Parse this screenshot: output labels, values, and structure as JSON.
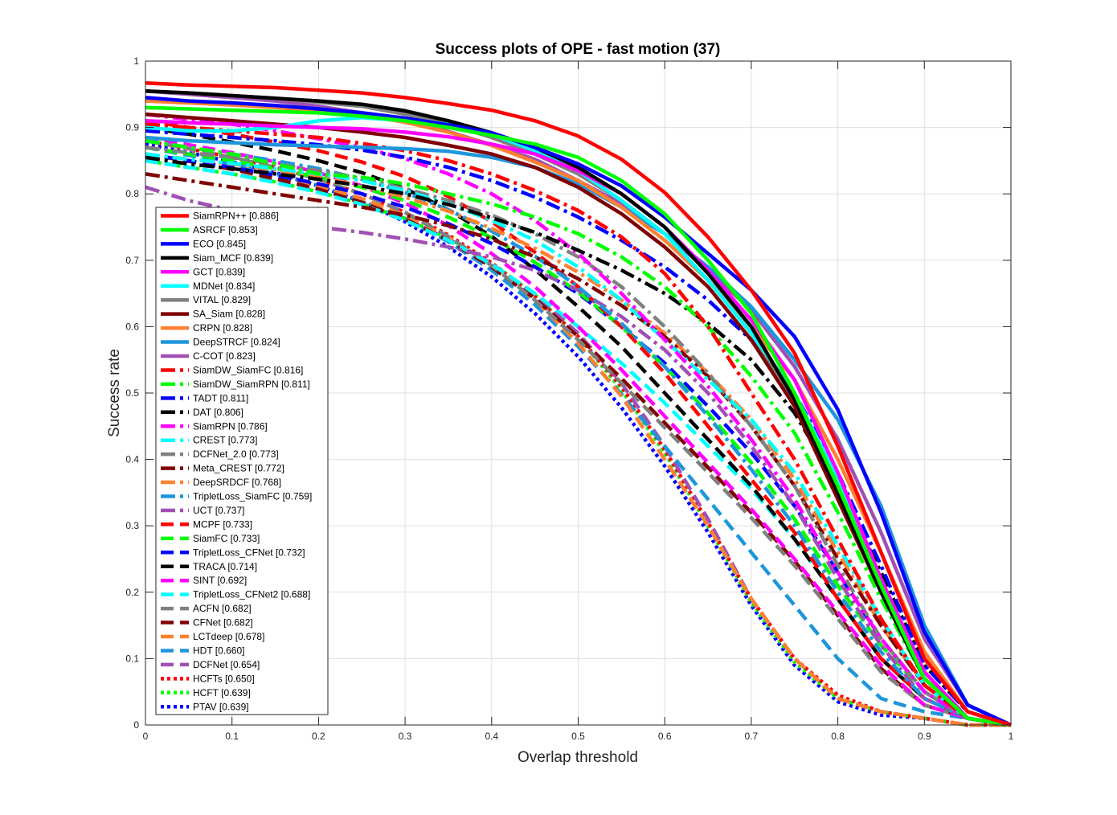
{
  "chart_data": {
    "type": "line",
    "title": "Success plots of OPE - fast motion (37)",
    "xlabel": "Overlap threshold",
    "ylabel": "Success rate",
    "xlim": [
      0,
      1
    ],
    "ylim": [
      0,
      1
    ],
    "xticks": [
      "0",
      "0.1",
      "0.2",
      "0.3",
      "0.4",
      "0.5",
      "0.6",
      "0.7",
      "0.8",
      "0.9",
      "1"
    ],
    "yticks": [
      "0",
      "0.1",
      "0.2",
      "0.3",
      "0.4",
      "0.5",
      "0.6",
      "0.7",
      "0.8",
      "0.9",
      "1"
    ],
    "grid": true,
    "legend_position": "bottom-left",
    "x": [
      0,
      0.05,
      0.1,
      0.15,
      0.2,
      0.25,
      0.3,
      0.35,
      0.4,
      0.45,
      0.5,
      0.55,
      0.6,
      0.65,
      0.7,
      0.75,
      0.8,
      0.85,
      0.9,
      0.95,
      1
    ],
    "series": [
      {
        "name": "SiamRPN++ [0.886]",
        "color": "#ff0000",
        "style": "solid",
        "values": [
          0.967,
          0.964,
          0.962,
          0.96,
          0.956,
          0.952,
          0.945,
          0.936,
          0.926,
          0.91,
          0.887,
          0.852,
          0.802,
          0.735,
          0.655,
          0.56,
          0.42,
          0.26,
          0.1,
          0.02,
          0.0
        ]
      },
      {
        "name": "ASRCF [0.853]",
        "color": "#00ff00",
        "style": "solid",
        "values": [
          0.93,
          0.928,
          0.926,
          0.924,
          0.922,
          0.917,
          0.91,
          0.9,
          0.888,
          0.875,
          0.855,
          0.82,
          0.77,
          0.7,
          0.62,
          0.5,
          0.36,
          0.21,
          0.07,
          0.01,
          0.0
        ]
      },
      {
        "name": "ECO [0.845]",
        "color": "#0000ff",
        "style": "solid",
        "values": [
          0.945,
          0.94,
          0.937,
          0.933,
          0.928,
          0.922,
          0.914,
          0.904,
          0.892,
          0.87,
          0.845,
          0.812,
          0.765,
          0.71,
          0.655,
          0.585,
          0.475,
          0.32,
          0.14,
          0.03,
          0.0
        ]
      },
      {
        "name": "Siam_MCF [0.839]",
        "color": "#000000",
        "style": "solid",
        "values": [
          0.955,
          0.952,
          0.948,
          0.944,
          0.94,
          0.935,
          0.925,
          0.91,
          0.892,
          0.87,
          0.84,
          0.8,
          0.75,
          0.68,
          0.6,
          0.49,
          0.35,
          0.2,
          0.07,
          0.01,
          0.0
        ]
      },
      {
        "name": "GCT [0.839]",
        "color": "#ff00ff",
        "style": "solid",
        "values": [
          0.91,
          0.907,
          0.905,
          0.902,
          0.9,
          0.898,
          0.893,
          0.886,
          0.875,
          0.86,
          0.835,
          0.8,
          0.75,
          0.685,
          0.61,
          0.52,
          0.38,
          0.22,
          0.08,
          0.01,
          0.0
        ]
      },
      {
        "name": "MDNet [0.834]",
        "color": "#00ffff",
        "style": "solid",
        "values": [
          0.9,
          0.895,
          0.895,
          0.9,
          0.91,
          0.915,
          0.91,
          0.905,
          0.89,
          0.865,
          0.835,
          0.79,
          0.74,
          0.67,
          0.59,
          0.5,
          0.37,
          0.22,
          0.08,
          0.01,
          0.0
        ]
      },
      {
        "name": "VITAL [0.829]",
        "color": "#808080",
        "style": "solid",
        "values": [
          0.955,
          0.952,
          0.948,
          0.944,
          0.938,
          0.932,
          0.92,
          0.905,
          0.885,
          0.86,
          0.83,
          0.79,
          0.74,
          0.67,
          0.59,
          0.49,
          0.35,
          0.2,
          0.07,
          0.01,
          0.0
        ]
      },
      {
        "name": "SA_Siam [0.828]",
        "color": "#800000",
        "style": "solid",
        "values": [
          0.92,
          0.915,
          0.91,
          0.905,
          0.9,
          0.893,
          0.885,
          0.873,
          0.86,
          0.84,
          0.81,
          0.77,
          0.72,
          0.66,
          0.58,
          0.48,
          0.34,
          0.2,
          0.07,
          0.01,
          0.0
        ]
      },
      {
        "name": "CRPN [0.828]",
        "color": "#ff8030",
        "style": "solid",
        "values": [
          0.94,
          0.937,
          0.934,
          0.93,
          0.925,
          0.918,
          0.908,
          0.893,
          0.873,
          0.848,
          0.82,
          0.78,
          0.73,
          0.67,
          0.6,
          0.52,
          0.4,
          0.26,
          0.11,
          0.02,
          0.0
        ]
      },
      {
        "name": "DeepSTRCF [0.824]",
        "color": "#1e96dc",
        "style": "solid",
        "values": [
          0.885,
          0.88,
          0.877,
          0.874,
          0.872,
          0.87,
          0.868,
          0.864,
          0.855,
          0.84,
          0.815,
          0.78,
          0.74,
          0.69,
          0.63,
          0.55,
          0.46,
          0.33,
          0.15,
          0.03,
          0.0
        ]
      },
      {
        "name": "C-COT [0.823]",
        "color": "#a050b4",
        "style": "solid",
        "values": [
          0.955,
          0.95,
          0.945,
          0.94,
          0.932,
          0.922,
          0.91,
          0.894,
          0.874,
          0.852,
          0.82,
          0.785,
          0.74,
          0.685,
          0.625,
          0.54,
          0.43,
          0.29,
          0.13,
          0.03,
          0.0
        ]
      },
      {
        "name": "SiamDW_SiamFC [0.816]",
        "color": "#ff0000",
        "style": "dashdot",
        "values": [
          0.905,
          0.9,
          0.895,
          0.89,
          0.885,
          0.876,
          0.865,
          0.85,
          0.83,
          0.805,
          0.775,
          0.735,
          0.68,
          0.6,
          0.5,
          0.4,
          0.28,
          0.16,
          0.06,
          0.01,
          0.0
        ]
      },
      {
        "name": "SiamDW_SiamRPN [0.811]",
        "color": "#00ff00",
        "style": "dashdot",
        "values": [
          0.88,
          0.87,
          0.86,
          0.845,
          0.83,
          0.825,
          0.815,
          0.8,
          0.785,
          0.765,
          0.74,
          0.705,
          0.66,
          0.6,
          0.525,
          0.44,
          0.32,
          0.19,
          0.07,
          0.01,
          0.0
        ]
      },
      {
        "name": "TADT [0.811]",
        "color": "#0000ff",
        "style": "dashdot",
        "values": [
          0.895,
          0.89,
          0.885,
          0.88,
          0.874,
          0.866,
          0.855,
          0.84,
          0.82,
          0.795,
          0.765,
          0.73,
          0.69,
          0.64,
          0.58,
          0.5,
          0.38,
          0.24,
          0.09,
          0.02,
          0.0
        ]
      },
      {
        "name": "DAT [0.806]",
        "color": "#000000",
        "style": "dashdot",
        "values": [
          0.855,
          0.845,
          0.838,
          0.83,
          0.822,
          0.812,
          0.8,
          0.784,
          0.764,
          0.742,
          0.715,
          0.685,
          0.65,
          0.605,
          0.55,
          0.47,
          0.36,
          0.23,
          0.09,
          0.02,
          0.0
        ]
      },
      {
        "name": "SiamRPN [0.786]",
        "color": "#ff00ff",
        "style": "dashdot",
        "values": [
          0.92,
          0.912,
          0.905,
          0.895,
          0.883,
          0.87,
          0.853,
          0.83,
          0.8,
          0.76,
          0.71,
          0.65,
          0.58,
          0.51,
          0.43,
          0.34,
          0.23,
          0.13,
          0.05,
          0.01,
          0.0
        ]
      },
      {
        "name": "CREST [0.773]",
        "color": "#00ffff",
        "style": "dashdot",
        "values": [
          0.86,
          0.852,
          0.846,
          0.838,
          0.83,
          0.82,
          0.805,
          0.785,
          0.76,
          0.73,
          0.69,
          0.64,
          0.58,
          0.52,
          0.46,
          0.38,
          0.27,
          0.16,
          0.06,
          0.01,
          0.0
        ]
      },
      {
        "name": "DCFNet_2.0 [0.773]",
        "color": "#808080",
        "style": "dashdot",
        "values": [
          0.87,
          0.862,
          0.855,
          0.845,
          0.835,
          0.823,
          0.808,
          0.79,
          0.768,
          0.74,
          0.705,
          0.66,
          0.6,
          0.53,
          0.45,
          0.36,
          0.24,
          0.13,
          0.05,
          0.01,
          0.0
        ]
      },
      {
        "name": "Meta_CREST [0.772]",
        "color": "#800000",
        "style": "dashdot",
        "values": [
          0.83,
          0.82,
          0.81,
          0.8,
          0.79,
          0.78,
          0.768,
          0.752,
          0.732,
          0.705,
          0.672,
          0.632,
          0.585,
          0.525,
          0.45,
          0.36,
          0.25,
          0.15,
          0.06,
          0.01,
          0.0
        ]
      },
      {
        "name": "DeepSRDCF [0.768]",
        "color": "#ff8030",
        "style": "dashdot",
        "values": [
          0.86,
          0.852,
          0.845,
          0.836,
          0.826,
          0.812,
          0.795,
          0.774,
          0.748,
          0.718,
          0.682,
          0.64,
          0.59,
          0.53,
          0.46,
          0.37,
          0.26,
          0.15,
          0.06,
          0.01,
          0.0
        ]
      },
      {
        "name": "TripletLoss_SiamFC [0.759]",
        "color": "#1e96dc",
        "style": "dashdot",
        "values": [
          0.88,
          0.87,
          0.86,
          0.85,
          0.838,
          0.822,
          0.802,
          0.776,
          0.744,
          0.706,
          0.66,
          0.605,
          0.54,
          0.465,
          0.385,
          0.3,
          0.2,
          0.11,
          0.04,
          0.01,
          0.0
        ]
      },
      {
        "name": "UCT [0.737]",
        "color": "#a050b4",
        "style": "dashdot",
        "values": [
          0.81,
          0.79,
          0.775,
          0.762,
          0.75,
          0.742,
          0.732,
          0.72,
          0.705,
          0.685,
          0.655,
          0.615,
          0.565,
          0.5,
          0.42,
          0.33,
          0.22,
          0.12,
          0.04,
          0.01,
          0.0
        ]
      },
      {
        "name": "MCPF [0.733]",
        "color": "#ff0000",
        "style": "dashed",
        "values": [
          0.91,
          0.9,
          0.89,
          0.878,
          0.865,
          0.848,
          0.826,
          0.796,
          0.758,
          0.712,
          0.66,
          0.6,
          0.53,
          0.45,
          0.37,
          0.29,
          0.19,
          0.1,
          0.04,
          0.01,
          0.0
        ]
      },
      {
        "name": "SiamFC [0.733]",
        "color": "#00ff00",
        "style": "dashed",
        "values": [
          0.87,
          0.86,
          0.85,
          0.838,
          0.825,
          0.81,
          0.79,
          0.765,
          0.734,
          0.697,
          0.652,
          0.6,
          0.54,
          0.47,
          0.395,
          0.31,
          0.21,
          0.12,
          0.05,
          0.01,
          0.0
        ]
      },
      {
        "name": "TripletLoss_CFNet [0.732]",
        "color": "#0000ff",
        "style": "dashed",
        "values": [
          0.86,
          0.85,
          0.84,
          0.828,
          0.815,
          0.8,
          0.78,
          0.755,
          0.725,
          0.69,
          0.65,
          0.6,
          0.545,
          0.48,
          0.41,
          0.33,
          0.23,
          0.13,
          0.05,
          0.01,
          0.0
        ]
      },
      {
        "name": "TRACA [0.714]",
        "color": "#000000",
        "style": "dashed",
        "values": [
          0.9,
          0.89,
          0.878,
          0.865,
          0.85,
          0.832,
          0.808,
          0.776,
          0.736,
          0.686,
          0.63,
          0.57,
          0.5,
          0.43,
          0.36,
          0.28,
          0.19,
          0.1,
          0.04,
          0.01,
          0.0
        ]
      },
      {
        "name": "SINT [0.692]",
        "color": "#ff00ff",
        "style": "dashed",
        "values": [
          0.885,
          0.874,
          0.862,
          0.848,
          0.832,
          0.812,
          0.786,
          0.752,
          0.71,
          0.66,
          0.6,
          0.535,
          0.465,
          0.395,
          0.325,
          0.25,
          0.17,
          0.09,
          0.03,
          0.01,
          0.0
        ]
      },
      {
        "name": "TripletLoss_CFNet2 [0.688]",
        "color": "#00ffff",
        "style": "dashed",
        "values": [
          0.85,
          0.84,
          0.83,
          0.817,
          0.802,
          0.784,
          0.76,
          0.73,
          0.694,
          0.65,
          0.6,
          0.545,
          0.485,
          0.42,
          0.355,
          0.28,
          0.19,
          0.1,
          0.04,
          0.01,
          0.0
        ]
      },
      {
        "name": "ACFN [0.682]",
        "color": "#808080",
        "style": "dashed",
        "values": [
          0.88,
          0.868,
          0.855,
          0.84,
          0.822,
          0.8,
          0.772,
          0.736,
          0.692,
          0.64,
          0.58,
          0.515,
          0.448,
          0.38,
          0.312,
          0.24,
          0.16,
          0.08,
          0.03,
          0.01,
          0.0
        ]
      },
      {
        "name": "CFNet [0.682]",
        "color": "#800000",
        "style": "dashed",
        "values": [
          0.86,
          0.849,
          0.837,
          0.823,
          0.807,
          0.787,
          0.762,
          0.73,
          0.69,
          0.642,
          0.585,
          0.522,
          0.455,
          0.388,
          0.32,
          0.247,
          0.165,
          0.085,
          0.03,
          0.01,
          0.0
        ]
      },
      {
        "name": "LCTdeep [0.678]",
        "color": "#ff8030",
        "style": "dashed",
        "values": [
          0.86,
          0.85,
          0.84,
          0.827,
          0.812,
          0.793,
          0.768,
          0.735,
          0.692,
          0.64,
          0.575,
          0.495,
          0.4,
          0.3,
          0.19,
          0.1,
          0.04,
          0.02,
          0.01,
          0.0,
          0.0
        ]
      },
      {
        "name": "HDT [0.660]",
        "color": "#1e96dc",
        "style": "dashed",
        "values": [
          0.87,
          0.858,
          0.845,
          0.83,
          0.812,
          0.79,
          0.763,
          0.728,
          0.685,
          0.633,
          0.57,
          0.498,
          0.42,
          0.34,
          0.26,
          0.18,
          0.1,
          0.04,
          0.02,
          0.01,
          0.0
        ]
      },
      {
        "name": "DCFNet [0.654]",
        "color": "#a050b4",
        "style": "dashed",
        "values": [
          0.85,
          0.84,
          0.83,
          0.818,
          0.803,
          0.785,
          0.762,
          0.732,
          0.695,
          0.648,
          0.59,
          0.515,
          0.42,
          0.31,
          0.19,
          0.1,
          0.04,
          0.02,
          0.01,
          0.0,
          0.0
        ]
      },
      {
        "name": "HCFTs [0.650]",
        "color": "#ff0000",
        "style": "dotted",
        "values": [
          0.88,
          0.868,
          0.855,
          0.84,
          0.822,
          0.8,
          0.772,
          0.738,
          0.696,
          0.645,
          0.585,
          0.51,
          0.415,
          0.305,
          0.19,
          0.1,
          0.045,
          0.02,
          0.01,
          0.0,
          0.0
        ]
      },
      {
        "name": "HCFT [0.639]",
        "color": "#00ff00",
        "style": "dotted",
        "values": [
          0.85,
          0.84,
          0.83,
          0.818,
          0.803,
          0.785,
          0.763,
          0.733,
          0.696,
          0.648,
          0.585,
          0.505,
          0.41,
          0.3,
          0.185,
          0.095,
          0.04,
          0.02,
          0.01,
          0.0,
          0.0
        ]
      },
      {
        "name": "PTAV [0.639]",
        "color": "#0000ff",
        "style": "dotted",
        "values": [
          0.875,
          0.862,
          0.848,
          0.832,
          0.812,
          0.788,
          0.758,
          0.72,
          0.675,
          0.62,
          0.555,
          0.478,
          0.39,
          0.29,
          0.18,
          0.09,
          0.035,
          0.015,
          0.01,
          0.0,
          0.0
        ]
      }
    ]
  }
}
